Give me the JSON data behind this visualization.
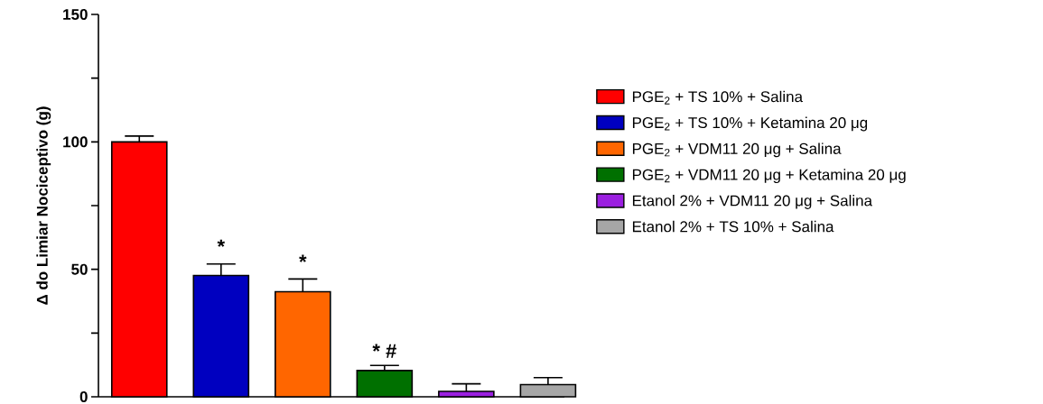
{
  "chart_data": {
    "type": "bar",
    "ylabel": "Δ do Limiar Nociceptivo (g)",
    "categories": [
      null,
      null,
      null,
      null,
      null,
      null
    ],
    "series": [
      {
        "name": "PGE$_{2}$ + TS 10% + Salina",
        "color": "#ff0000",
        "values": [
          100,
          null,
          null,
          null,
          null,
          null
        ],
        "errors": [
          2.3,
          null,
          null,
          null,
          null,
          null
        ]
      },
      {
        "name": "PGE$_{2}$ + TS 10% + Ketamina 20 μg",
        "color": "#0000c0",
        "values": [
          null,
          47.6,
          null,
          null,
          null,
          null
        ],
        "errors": [
          null,
          4.5,
          null,
          null,
          null,
          null
        ]
      },
      {
        "name": "PGE$_{2}$ + VDM11 20 μg + Salina",
        "color": "#ff6600",
        "values": [
          null,
          null,
          41.2,
          null,
          null,
          null
        ],
        "errors": [
          null,
          null,
          5,
          null,
          null,
          null
        ]
      },
      {
        "name": "PGE$_{2}$ + VDM11 20 μg + Ketamina 20 μg",
        "color": "#007000",
        "values": [
          null,
          null,
          null,
          10.3,
          null,
          null
        ],
        "errors": [
          null,
          null,
          null,
          2,
          null,
          null
        ]
      },
      {
        "name": "Etanol 2% + VDM11 20 μg + Salina",
        "color": "#9b1fe0",
        "values": [
          null,
          null,
          null,
          null,
          2.1,
          null
        ],
        "errors": [
          null,
          null,
          null,
          null,
          3,
          null
        ]
      },
      {
        "name": "Etanol 2% + TS 10% + Salina",
        "color": "#a6a6a6",
        "values": [
          null,
          null,
          null,
          null,
          null,
          4.8
        ],
        "errors": [
          null,
          null,
          null,
          null,
          null,
          2.7
        ]
      }
    ],
    "ylim": [
      0,
      150
    ],
    "yticks": [
      0,
      {
        "value": 25,
        "label": null
      },
      50,
      {
        "value": 75,
        "label": null
      },
      100,
      {
        "value": 125,
        "label": null
      },
      150
    ],
    "annotations": [
      "*",
      "*",
      "* #"
    ],
    "legend": "right"
  }
}
